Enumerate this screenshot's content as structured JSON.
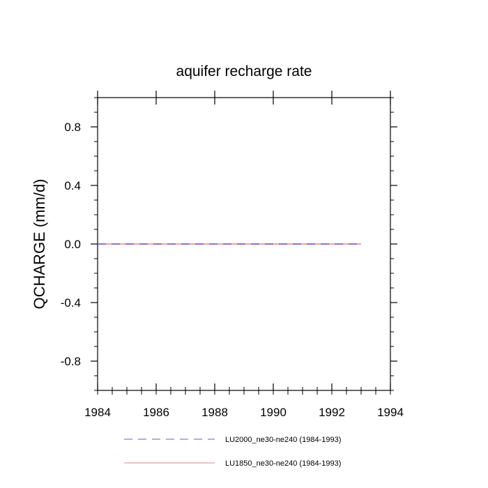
{
  "chart_data": {
    "type": "line",
    "title": "aquifer recharge rate",
    "xlabel": "",
    "ylabel": "QCHARGE  (mm/d)",
    "xlim": [
      1984,
      1994
    ],
    "ylim": [
      -1.0,
      1.0
    ],
    "xticks": [
      "1984",
      "1986",
      "1988",
      "1990",
      "1992",
      "1994"
    ],
    "yticks": [
      "0.8",
      "0.4",
      "0.0",
      "-0.4",
      "-0.8"
    ],
    "grid": false,
    "legend_position": "bottom",
    "x": [
      1984,
      1985,
      1986,
      1987,
      1988,
      1989,
      1990,
      1991,
      1992,
      1993
    ],
    "series": [
      {
        "name": "LU2000_ne30-ne240 (1984-1993)",
        "values": [
          0,
          0,
          0,
          0,
          0,
          0,
          0,
          0,
          0,
          0
        ],
        "color": "#6a5acd",
        "style": "dashed"
      },
      {
        "name": "LU1850_ne30-ne240 (1984-1993)",
        "values": [
          0,
          0,
          0,
          0,
          0,
          0,
          0,
          0,
          0,
          0
        ],
        "color": "#f08080",
        "style": "solid"
      }
    ]
  }
}
